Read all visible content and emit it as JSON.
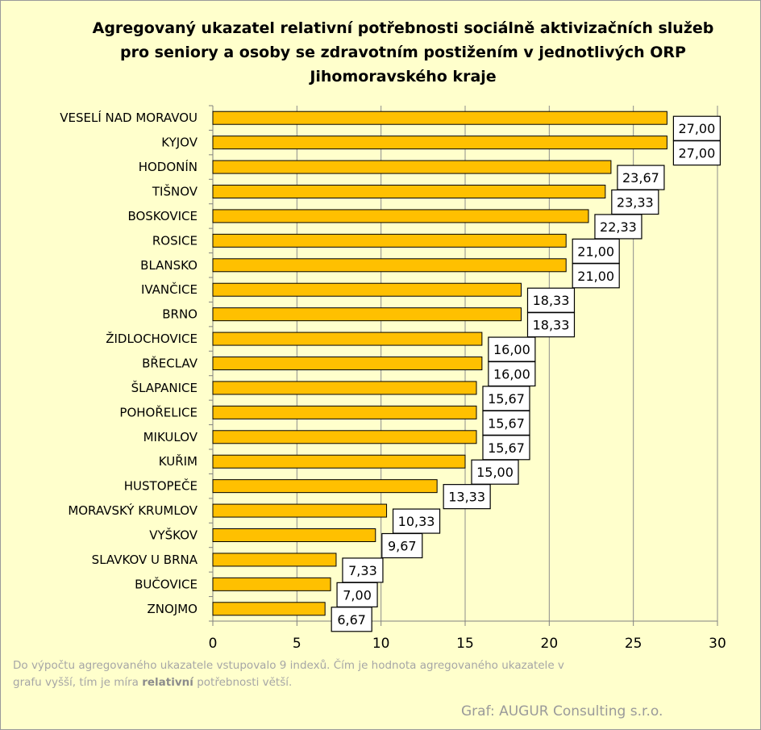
{
  "chart_data": {
    "type": "bar",
    "orientation": "horizontal",
    "title_lines": [
      "Agregovaný ukazatel relativní potřebnosti  sociálně aktivizačních služeb",
      "pro seniory a osoby se zdravotním postižením v jednotlivých ORP",
      "Jihomoravského kraje"
    ],
    "categories": [
      "VESELÍ NAD MORAVOU",
      "KYJOV",
      "HODONÍN",
      "TIŠNOV",
      "BOSKOVICE",
      "ROSICE",
      "BLANSKO",
      "IVANČICE",
      "BRNO",
      "ŽIDLOCHOVICE",
      "BŘECLAV",
      "ŠLAPANICE",
      "POHOŘELICE",
      "MIKULOV",
      "KUŘIM",
      "HUSTOPEČE",
      "MORAVSKÝ KRUMLOV",
      "VYŠKOV",
      "SLAVKOV U BRNA",
      "BUČOVICE",
      "ZNOJMO"
    ],
    "values": [
      27.0,
      27.0,
      23.67,
      23.33,
      22.33,
      21.0,
      21.0,
      18.33,
      18.33,
      16.0,
      16.0,
      15.67,
      15.67,
      15.67,
      15.0,
      13.33,
      10.33,
      9.67,
      7.33,
      7.0,
      6.67
    ],
    "value_labels": [
      "27,00",
      "27,00",
      "23,67",
      "23,33",
      "22,33",
      "21,00",
      "21,00",
      "18,33",
      "18,33",
      "16,00",
      "16,00",
      "15,67",
      "15,67",
      "15,67",
      "15,00",
      "13,33",
      "10,33",
      "9,67",
      "7,33",
      "7,00",
      "6,67"
    ],
    "xlim": [
      0,
      30
    ],
    "xticks": [
      0,
      5,
      10,
      15,
      20,
      25,
      30
    ],
    "grid": "vertical",
    "bar_color": "#ffc000",
    "background_color": "#ffffcc"
  },
  "footnote": {
    "part1": "Do výpočtu agregovaného ukazatele vstupovalo 9 indexů. Čím je hodnota agregovaného ukazatele v grafu vyšší, tím je míra ",
    "bold": "relativní",
    "part2": " potřebnosti větší."
  },
  "credit": "Graf: AUGUR Consulting s.r.o."
}
